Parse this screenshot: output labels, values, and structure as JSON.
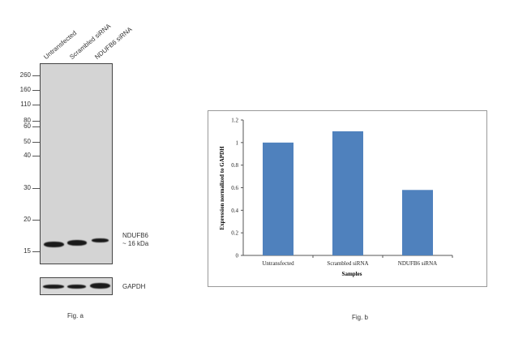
{
  "fig_a": {
    "lanes": [
      "Untransfected",
      "Scrambled siRNA",
      "NDUFB6 siRNA"
    ],
    "mw_markers": [
      "260",
      "160",
      "110",
      "80",
      "60",
      "50",
      "40",
      "30",
      "20",
      "15"
    ],
    "target_label": "NDUFB6",
    "target_size": "~ 16 kDa",
    "loading_label": "GAPDH",
    "caption": "Fig. a"
  },
  "fig_b": {
    "caption": "Fig. b"
  },
  "chart_data": {
    "type": "bar",
    "categories": [
      "Untransfected",
      "Scrambled siRNA",
      "NDUFB6 siRNA"
    ],
    "values": [
      1.0,
      1.1,
      0.58
    ],
    "title": "",
    "xlabel": "Samples",
    "ylabel": "Expression normalized to GAPDH",
    "ylim": [
      0,
      1.2
    ],
    "yticks": [
      "0",
      "0.2",
      "0.4",
      "0.6",
      "0.8",
      "1",
      "1.2"
    ],
    "bar_color": "#4f81bd",
    "grid": false,
    "legend": "none"
  }
}
